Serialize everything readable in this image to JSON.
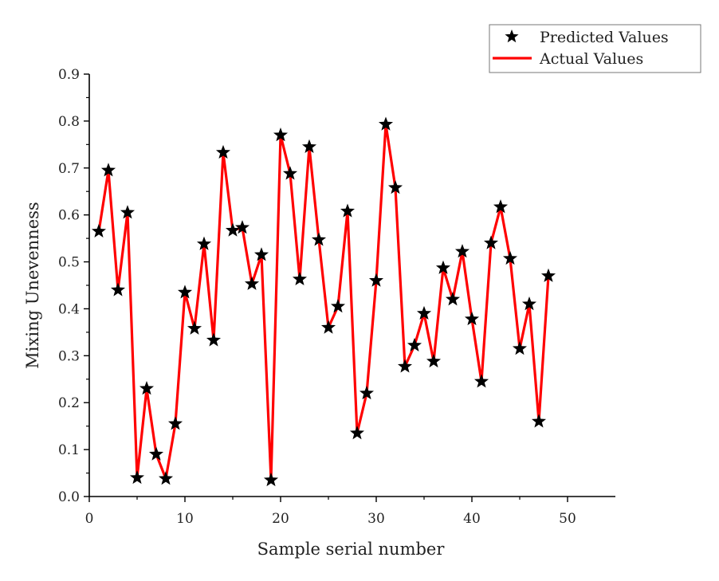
{
  "chart_data": {
    "type": "line",
    "title": "",
    "xlabel": "Sample serial number",
    "ylabel": "Mixing Unevenness",
    "xlim": [
      0,
      55
    ],
    "ylim": [
      0,
      0.9
    ],
    "xticks": [
      0,
      10,
      20,
      30,
      40,
      50
    ],
    "xtick_labels": [
      "0",
      "10",
      "20",
      "30",
      "40",
      "50"
    ],
    "yticks": [
      0,
      0.1,
      0.2,
      0.3,
      0.4,
      0.5,
      0.6,
      0.7,
      0.8,
      0.9
    ],
    "ytick_labels": [
      "0.0",
      "0.1",
      "0.2",
      "0.3",
      "0.4",
      "0.5",
      "0.6",
      "0.7",
      "0.8",
      "0.9"
    ],
    "grid": false,
    "legend_position": "top-right",
    "x": [
      1,
      2,
      3,
      4,
      5,
      6,
      7,
      8,
      9,
      10,
      11,
      12,
      13,
      14,
      15,
      16,
      17,
      18,
      19,
      20,
      21,
      22,
      23,
      24,
      25,
      26,
      27,
      28,
      29,
      30,
      31,
      32,
      33,
      34,
      35,
      36,
      37,
      38,
      39,
      40,
      41,
      42,
      43,
      44,
      45,
      46,
      47,
      48
    ],
    "series": [
      {
        "name": "Predicted Values",
        "style": "star-marker",
        "color": "#000000",
        "values": [
          0.565,
          0.695,
          0.44,
          0.605,
          0.04,
          0.23,
          0.09,
          0.038,
          0.155,
          0.435,
          0.358,
          0.538,
          0.333,
          0.733,
          0.567,
          0.573,
          0.453,
          0.515,
          0.035,
          0.77,
          0.688,
          0.463,
          0.745,
          0.547,
          0.36,
          0.405,
          0.608,
          0.135,
          0.22,
          0.46,
          0.793,
          0.658,
          0.277,
          0.322,
          0.39,
          0.288,
          0.487,
          0.42,
          0.522,
          0.378,
          0.245,
          0.54,
          0.617,
          0.507,
          0.315,
          0.41,
          0.16,
          0.47
        ]
      },
      {
        "name": "Actual Values",
        "style": "line",
        "color": "#ff0000",
        "values": [
          0.565,
          0.695,
          0.44,
          0.605,
          0.04,
          0.23,
          0.09,
          0.038,
          0.155,
          0.435,
          0.358,
          0.538,
          0.333,
          0.733,
          0.567,
          0.573,
          0.453,
          0.515,
          0.035,
          0.77,
          0.688,
          0.463,
          0.745,
          0.547,
          0.36,
          0.405,
          0.608,
          0.135,
          0.22,
          0.46,
          0.793,
          0.658,
          0.277,
          0.322,
          0.39,
          0.288,
          0.487,
          0.42,
          0.522,
          0.378,
          0.245,
          0.54,
          0.617,
          0.507,
          0.315,
          0.41,
          0.16,
          0.47
        ]
      }
    ]
  }
}
